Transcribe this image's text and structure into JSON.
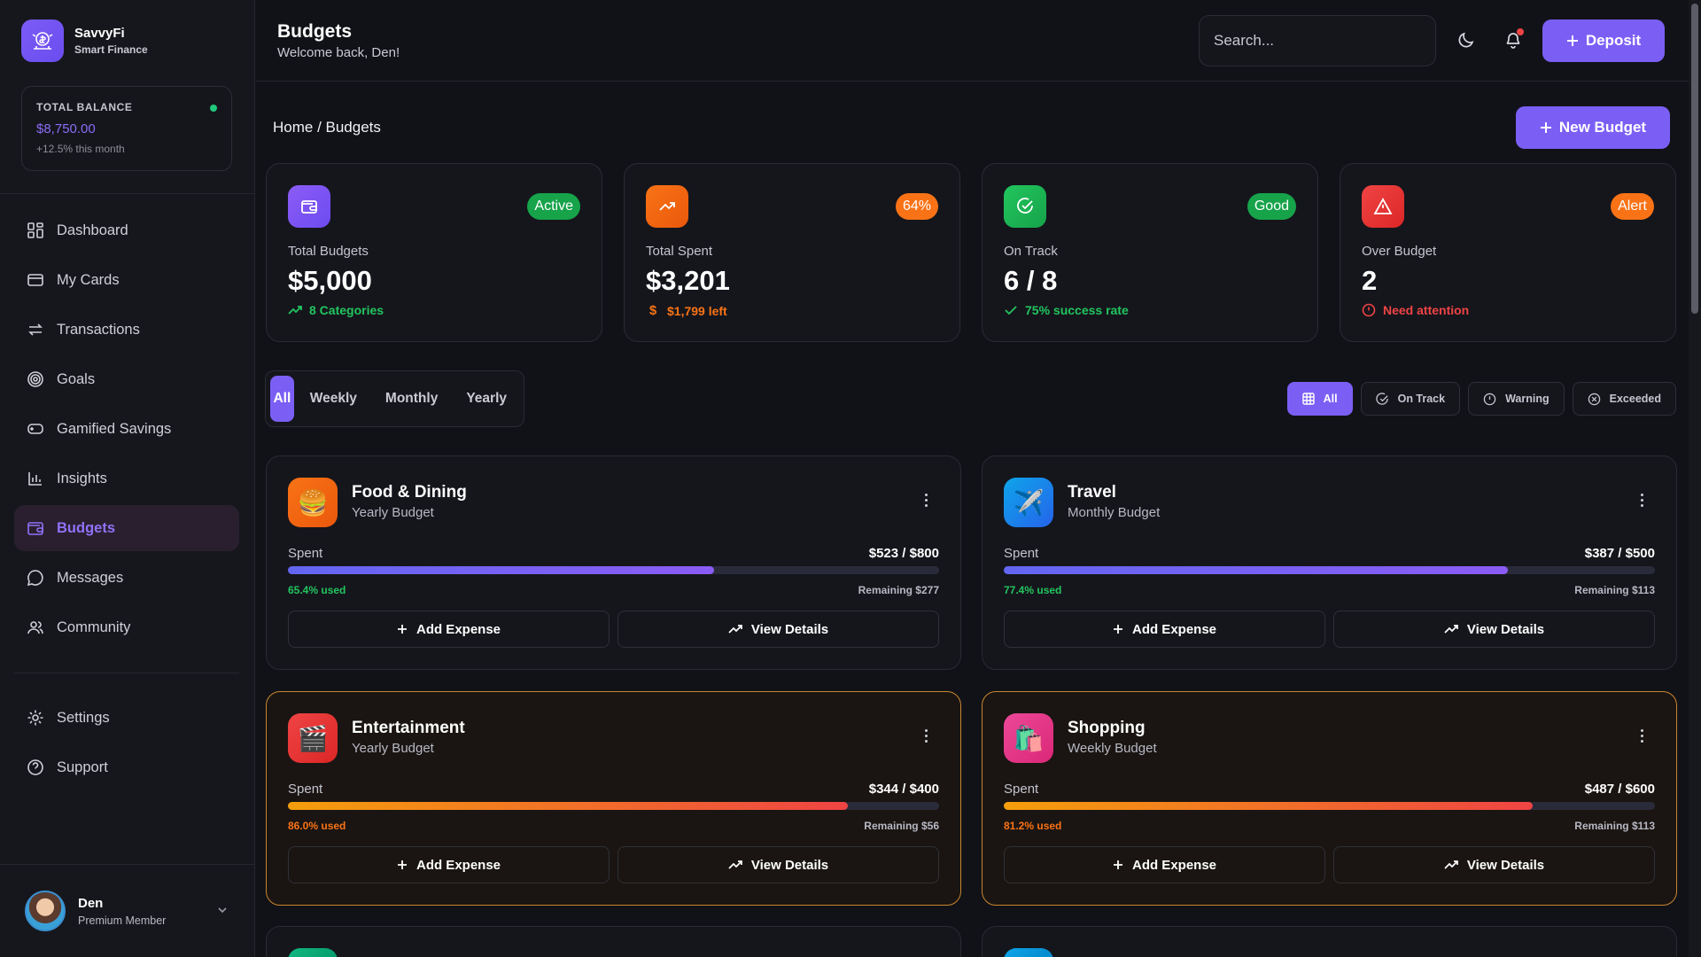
{
  "brand": {
    "name": "SavvyFi",
    "tagline": "Smart Finance"
  },
  "balance": {
    "label": "TOTAL BALANCE",
    "value": "$8,750.00",
    "change": "+12.5% this month"
  },
  "nav": {
    "items": [
      {
        "label": "Dashboard",
        "icon": "grid-icon"
      },
      {
        "label": "My Cards",
        "icon": "card-icon"
      },
      {
        "label": "Transactions",
        "icon": "swap-icon"
      },
      {
        "label": "Goals",
        "icon": "target-icon"
      },
      {
        "label": "Gamified Savings",
        "icon": "gamepad-icon"
      },
      {
        "label": "Insights",
        "icon": "bar-chart-icon"
      },
      {
        "label": "Budgets",
        "icon": "wallet-icon",
        "active": true
      },
      {
        "label": "Messages",
        "icon": "message-icon"
      },
      {
        "label": "Community",
        "icon": "users-icon"
      }
    ],
    "secondary": [
      {
        "label": "Settings",
        "icon": "gear-icon"
      },
      {
        "label": "Support",
        "icon": "help-icon"
      }
    ]
  },
  "user": {
    "name": "Den",
    "role": "Premium Member"
  },
  "header": {
    "title": "Budgets",
    "subtitle": "Welcome back, Den!",
    "search_placeholder": "Search...",
    "deposit_label": "Deposit"
  },
  "breadcrumb": "Home / Budgets",
  "new_budget_label": "New Budget",
  "stats": [
    {
      "label": "Total Budgets",
      "value": "$5,000",
      "badge": "Active",
      "note": "8 Categories",
      "color": "#22c55e"
    },
    {
      "label": "Total Spent",
      "value": "$3,201",
      "badge": "64%",
      "note": "$1,799 left",
      "color": "#f97316"
    },
    {
      "label": "On Track",
      "value": "6 / 8",
      "badge": "Good",
      "note": "75% success rate",
      "color": "#22c55e"
    },
    {
      "label": "Over Budget",
      "value": "2",
      "badge": "Alert",
      "note": "Need attention",
      "color": "#ef4444"
    }
  ],
  "period_tabs": [
    "All",
    "Weekly",
    "Monthly",
    "Yearly"
  ],
  "status_filters": [
    "All",
    "On Track",
    "Warning",
    "Exceeded"
  ],
  "budgets": [
    {
      "name": "Food & Dining",
      "type": "Yearly Budget",
      "emoji": "🍔",
      "spent_label": "Spent",
      "amount": "$523 / $800",
      "fraction": 0.654,
      "used": "65.4% used",
      "remaining": "Remaining $277",
      "status": "ok"
    },
    {
      "name": "Travel",
      "type": "Monthly Budget",
      "emoji": "✈️",
      "spent_label": "Spent",
      "amount": "$387 / $500",
      "fraction": 0.774,
      "used": "77.4% used",
      "remaining": "Remaining $113",
      "status": "ok"
    },
    {
      "name": "Entertainment",
      "type": "Yearly Budget",
      "emoji": "🎬",
      "spent_label": "Spent",
      "amount": "$344 / $400",
      "fraction": 0.86,
      "used": "86.0% used",
      "remaining": "Remaining $56",
      "status": "warn"
    },
    {
      "name": "Shopping",
      "type": "Weekly Budget",
      "emoji": "🛍️",
      "spent_label": "Spent",
      "amount": "$487 / $600",
      "fraction": 0.812,
      "used": "81.2% used",
      "remaining": "Remaining $113",
      "status": "warn"
    }
  ],
  "card_actions": {
    "add": "Add Expense",
    "view": "View Details"
  },
  "colors": {
    "accent": "#7b5ff5",
    "ok_text": "#22c55e",
    "warn_text": "#f97316",
    "alert": "#ef4444"
  }
}
